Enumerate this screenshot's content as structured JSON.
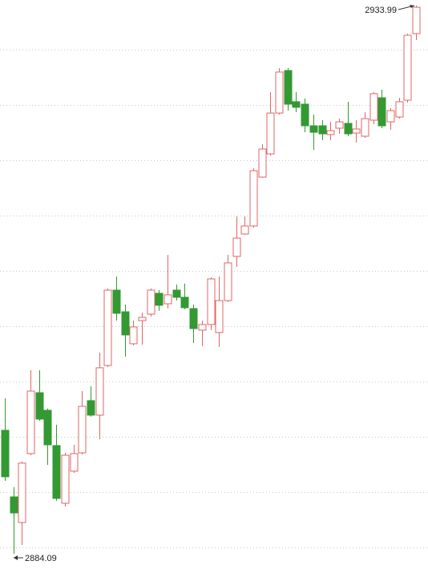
{
  "chart_data": {
    "type": "candlestick",
    "open": [
      2895.33,
      2889.27,
      2886.94,
      2893.21,
      2898.75,
      2897.15,
      2893.94,
      2888.69,
      2891.61,
      2893.28,
      2898.03,
      2896.71,
      2901.23,
      2908.09,
      2906.12,
      2903.21,
      2905.32,
      2905.9,
      2907.8,
      2906.85,
      2908.09,
      2907.44,
      2906.41,
      2904.45,
      2904.96,
      2904.23,
      2907.14,
      2911.16,
      2913.2,
      2913.93,
      2918.38,
      2920.49,
      2924.21,
      2928.08,
      2925.24,
      2925.02,
      2923.05,
      2923.05,
      2922.25,
      2922.83,
      2923.27,
      2922.39,
      2922.1,
      2923.56,
      2925.6,
      2923.41,
      2923.85,
      2925.38,
      2931.44
    ],
    "high": [
      2898.24,
      2890.15,
      2892.48,
      2900.8,
      2900.8,
      2897.3,
      2895.84,
      2893.28,
      2894.01,
      2898.9,
      2899.34,
      2902.4,
      2908.24,
      2909.33,
      2906.78,
      2905.32,
      2906.05,
      2908.24,
      2908.09,
      2911.3,
      2908.6,
      2908.68,
      2906.78,
      2905.32,
      2909.26,
      2909.33,
      2911.3,
      2914.8,
      2914.8,
      2919.18,
      2921.37,
      2926.11,
      2928.3,
      2928.3,
      2926.11,
      2925.53,
      2924.07,
      2923.56,
      2923.41,
      2923.7,
      2925.24,
      2923.56,
      2924.29,
      2926.11,
      2926.33,
      2924.65,
      2925.6,
      2931.44,
      2933.99
    ],
    "low": [
      2890.73,
      2884.09,
      2884.89,
      2893.06,
      2896.2,
      2892.19,
      2888.91,
      2888.4,
      2891.46,
      2893.14,
      2896.57,
      2894.52,
      2901.09,
      2905.32,
      2902.04,
      2903.06,
      2903.13,
      2905.69,
      2906.2,
      2906.41,
      2907.14,
      2906.34,
      2903.28,
      2902.99,
      2904.45,
      2902.91,
      2907.0,
      2910.21,
      2913.13,
      2913.78,
      2918.31,
      2920.35,
      2924.07,
      2924.43,
      2924.29,
      2922.46,
      2920.86,
      2921.73,
      2921.73,
      2922.32,
      2922.1,
      2921.52,
      2921.95,
      2923.19,
      2922.83,
      2922.68,
      2923.7,
      2925.16,
      2930.85
    ],
    "close": [
      2891.1,
      2887.81,
      2892.34,
      2898.9,
      2896.35,
      2894.01,
      2889.13,
      2893.06,
      2893.21,
      2897.51,
      2896.71,
      2901.02,
      2908.09,
      2905.98,
      2904.01,
      2904.74,
      2905.61,
      2908.09,
      2906.71,
      2907.66,
      2907.44,
      2906.49,
      2904.59,
      2904.96,
      2909.11,
      2907.14,
      2910.57,
      2912.83,
      2913.93,
      2918.96,
      2920.93,
      2924.21,
      2927.94,
      2925.02,
      2924.73,
      2923.05,
      2922.46,
      2922.32,
      2922.61,
      2923.41,
      2922.32,
      2922.76,
      2923.7,
      2925.97,
      2923.05,
      2924.43,
      2925.24,
      2931.29,
      2933.84
    ],
    "up_color": "#e06666",
    "down_color": "#339933",
    "grid": true
  }
}
